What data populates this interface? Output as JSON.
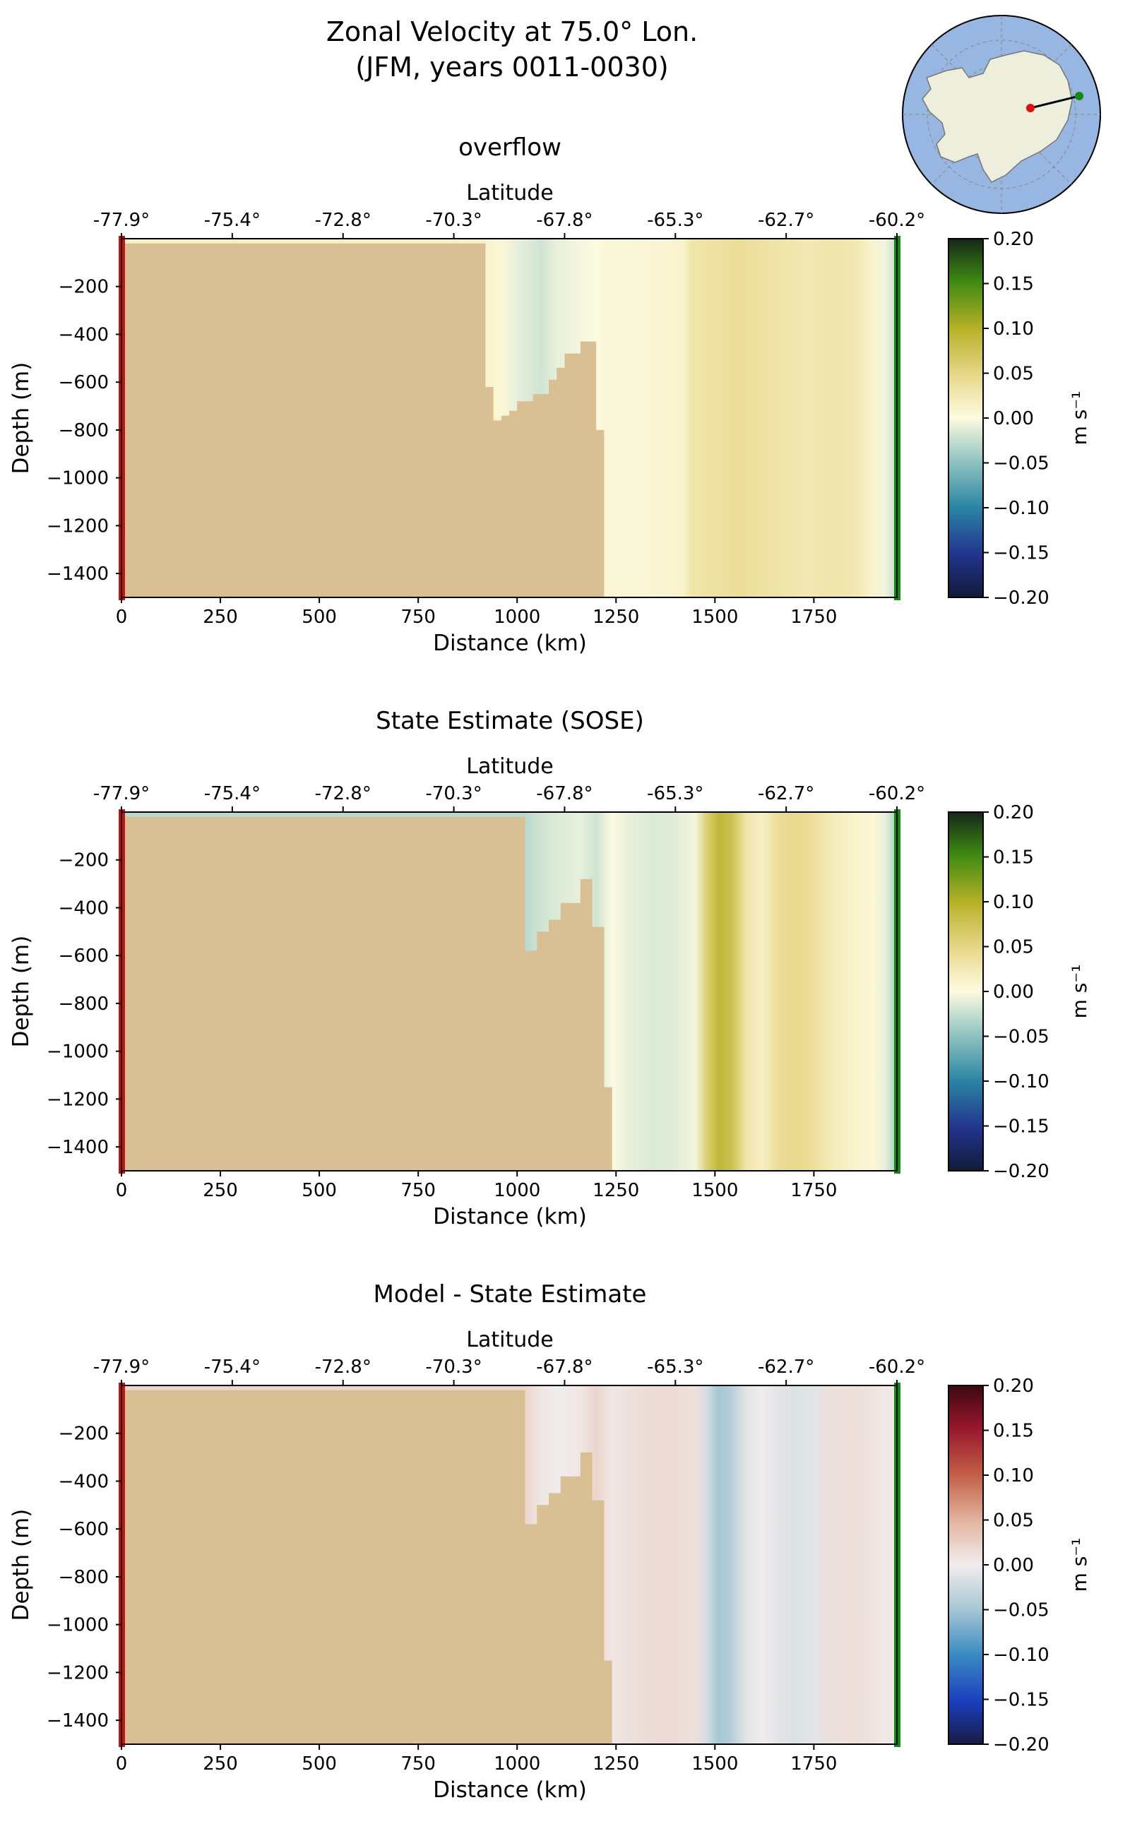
{
  "figure": {
    "title_line1": "Zonal Velocity at 75.0° Lon.",
    "title_line2": "(JFM, years 0011-0030)"
  },
  "colors": {
    "land": "#d8bf94",
    "ocean_map": "#97b6e1",
    "antarctica": "#eeeedc",
    "section_start": "#cc1111",
    "section_end": "#118811"
  },
  "chart_data": [
    {
      "type": "heatmap",
      "title": "overflow",
      "xlabel": "Distance (km)",
      "ylabel": "Depth (m)",
      "top_xlabel": "Latitude",
      "colorbar_label": "m s⁻¹",
      "colormap": "delta",
      "xlim": [
        0,
        1960
      ],
      "ylim": [
        -1500,
        0
      ],
      "xticks": [
        0,
        250,
        500,
        750,
        1000,
        1250,
        1500,
        1750
      ],
      "yticks": [
        -200,
        -400,
        -600,
        -800,
        -1000,
        -1200,
        -1400
      ],
      "latitude_ticks": [
        "-77.9°",
        "-75.4°",
        "-72.8°",
        "-70.3°",
        "-67.8°",
        "-65.3°",
        "-62.7°",
        "-60.2°"
      ],
      "colorbar_ticks": [
        "0.20",
        "0.15",
        "0.10",
        "0.05",
        "0.00",
        "−0.05",
        "−0.10",
        "−0.15",
        "−0.20"
      ],
      "vmin": -0.2,
      "vmax": 0.2,
      "bathymetry_depth_m": [
        [
          0,
          -20
        ],
        [
          920,
          -20
        ],
        [
          920,
          -620
        ],
        [
          940,
          -620
        ],
        [
          940,
          -760
        ],
        [
          960,
          -760
        ],
        [
          960,
          -740
        ],
        [
          980,
          -740
        ],
        [
          980,
          -720
        ],
        [
          1000,
          -720
        ],
        [
          1000,
          -680
        ],
        [
          1040,
          -680
        ],
        [
          1040,
          -650
        ],
        [
          1080,
          -650
        ],
        [
          1080,
          -590
        ],
        [
          1100,
          -590
        ],
        [
          1100,
          -540
        ],
        [
          1120,
          -540
        ],
        [
          1120,
          -480
        ],
        [
          1160,
          -480
        ],
        [
          1160,
          -430
        ],
        [
          1200,
          -430
        ],
        [
          1200,
          -800
        ],
        [
          1220,
          -800
        ],
        [
          1220,
          -1500
        ]
      ],
      "velocity_profile": {
        "x_km": [
          900,
          960,
          1000,
          1060,
          1100,
          1150,
          1200,
          1220,
          1280,
          1320,
          1370,
          1420,
          1440,
          1500,
          1560,
          1620,
          1680,
          1740,
          1800,
          1860,
          1900,
          1930,
          1950
        ],
        "u_ms": [
          0.015,
          0.005,
          -0.01,
          -0.02,
          -0.01,
          -0.005,
          0.0,
          0.005,
          0.004,
          0.005,
          0.008,
          0.01,
          0.03,
          0.035,
          0.04,
          0.035,
          0.03,
          0.025,
          0.03,
          0.025,
          0.01,
          -0.005,
          -0.02
        ]
      }
    },
    {
      "type": "heatmap",
      "title": "State Estimate (SOSE)",
      "xlabel": "Distance (km)",
      "ylabel": "Depth (m)",
      "top_xlabel": "Latitude",
      "colorbar_label": "m s⁻¹",
      "colormap": "delta",
      "xlim": [
        0,
        1960
      ],
      "ylim": [
        -1500,
        0
      ],
      "xticks": [
        0,
        250,
        500,
        750,
        1000,
        1250,
        1500,
        1750
      ],
      "yticks": [
        -200,
        -400,
        -600,
        -800,
        -1000,
        -1200,
        -1400
      ],
      "latitude_ticks": [
        "-77.9°",
        "-75.4°",
        "-72.8°",
        "-70.3°",
        "-67.8°",
        "-65.3°",
        "-62.7°",
        "-60.2°"
      ],
      "colorbar_ticks": [
        "0.20",
        "0.15",
        "0.10",
        "0.05",
        "0.00",
        "−0.05",
        "−0.10",
        "−0.15",
        "−0.20"
      ],
      "vmin": -0.2,
      "vmax": 0.2,
      "bathymetry_depth_m": [
        [
          0,
          -20
        ],
        [
          1020,
          -20
        ],
        [
          1020,
          -580
        ],
        [
          1050,
          -580
        ],
        [
          1050,
          -500
        ],
        [
          1080,
          -500
        ],
        [
          1080,
          -450
        ],
        [
          1110,
          -450
        ],
        [
          1110,
          -380
        ],
        [
          1160,
          -380
        ],
        [
          1160,
          -280
        ],
        [
          1190,
          -280
        ],
        [
          1190,
          -480
        ],
        [
          1220,
          -480
        ],
        [
          1220,
          -1150
        ],
        [
          1240,
          -1150
        ],
        [
          1240,
          -1500
        ]
      ],
      "velocity_profile": {
        "x_km": [
          1020,
          1060,
          1100,
          1160,
          1200,
          1240,
          1280,
          1340,
          1400,
          1450,
          1480,
          1510,
          1540,
          1580,
          1620,
          1660,
          1700,
          1740,
          1800,
          1860,
          1900,
          1930,
          1950
        ],
        "u_ms": [
          -0.03,
          -0.02,
          -0.015,
          -0.01,
          -0.02,
          0.0,
          -0.01,
          -0.015,
          -0.012,
          -0.005,
          0.06,
          0.09,
          0.08,
          0.03,
          0.015,
          0.04,
          0.045,
          0.04,
          0.02,
          0.01,
          0.005,
          -0.01,
          -0.03
        ]
      }
    },
    {
      "type": "heatmap",
      "title": "Model - State Estimate",
      "xlabel": "Distance (km)",
      "ylabel": "Depth (m)",
      "top_xlabel": "Latitude",
      "colorbar_label": "m s⁻¹",
      "colormap": "balance",
      "xlim": [
        0,
        1960
      ],
      "ylim": [
        -1500,
        0
      ],
      "xticks": [
        0,
        250,
        500,
        750,
        1000,
        1250,
        1500,
        1750
      ],
      "yticks": [
        -200,
        -400,
        -600,
        -800,
        -1000,
        -1200,
        -1400
      ],
      "latitude_ticks": [
        "-77.9°",
        "-75.4°",
        "-72.8°",
        "-70.3°",
        "-67.8°",
        "-65.3°",
        "-62.7°",
        "-60.2°"
      ],
      "colorbar_ticks": [
        "0.20",
        "0.15",
        "0.10",
        "0.05",
        "0.00",
        "−0.05",
        "−0.10",
        "−0.15",
        "−0.20"
      ],
      "vmin": -0.2,
      "vmax": 0.2,
      "bathymetry_depth_m": [
        [
          0,
          -20
        ],
        [
          1020,
          -20
        ],
        [
          1020,
          -580
        ],
        [
          1050,
          -580
        ],
        [
          1050,
          -500
        ],
        [
          1080,
          -500
        ],
        [
          1080,
          -450
        ],
        [
          1110,
          -450
        ],
        [
          1110,
          -380
        ],
        [
          1160,
          -380
        ],
        [
          1160,
          -280
        ],
        [
          1190,
          -280
        ],
        [
          1190,
          -480
        ],
        [
          1220,
          -480
        ],
        [
          1220,
          -1150
        ],
        [
          1240,
          -1150
        ],
        [
          1240,
          -1500
        ]
      ],
      "velocity_profile": {
        "x_km": [
          1020,
          1060,
          1100,
          1160,
          1200,
          1240,
          1280,
          1340,
          1400,
          1450,
          1480,
          1510,
          1540,
          1580,
          1620,
          1660,
          1700,
          1740,
          1800,
          1860,
          1900,
          1930,
          1950
        ],
        "u_ms": [
          0.02,
          0.005,
          0.0,
          0.005,
          0.02,
          0.005,
          0.01,
          0.015,
          0.015,
          0.01,
          -0.02,
          -0.05,
          -0.04,
          -0.01,
          0.0,
          -0.01,
          -0.015,
          -0.01,
          0.01,
          0.012,
          0.008,
          0.003,
          0.005
        ]
      }
    }
  ]
}
